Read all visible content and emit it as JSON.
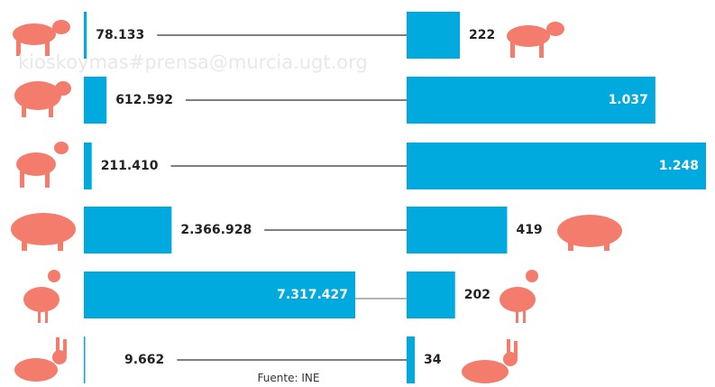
{
  "chart_data": [
    {
      "type": "bar",
      "orientation": "horizontal",
      "color": "#00a9de",
      "values": [
        78133,
        612592,
        211410,
        2366928,
        7317427,
        9662
      ],
      "value_labels": [
        "78.133",
        "612.592",
        "211.410",
        "2.366.928",
        "7.317.427",
        "9.662"
      ]
    },
    {
      "type": "bar",
      "orientation": "horizontal",
      "color": "#00a9de",
      "values": [
        222,
        1037,
        1248,
        419,
        202,
        34
      ],
      "value_labels": [
        "222",
        "1.037",
        "1.248",
        "419",
        "202",
        "34"
      ]
    }
  ],
  "watermark": "kioskoymas#prensa@murcia.ugt.org",
  "source": "Fuente: INE"
}
